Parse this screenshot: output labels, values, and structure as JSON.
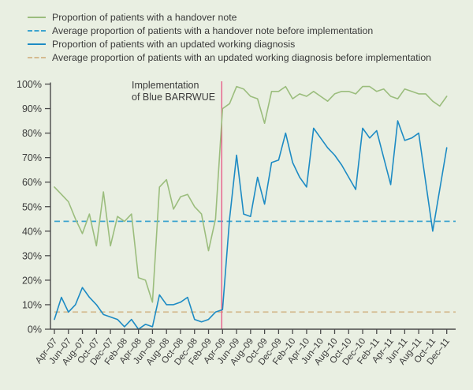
{
  "legend": {
    "items": [
      {
        "style": "solid",
        "color": "#9bbd7d"
      },
      {
        "style": "dashed",
        "color": "#3da4cf"
      },
      {
        "style": "solid",
        "color": "#1d8bc4"
      },
      {
        "style": "dashed",
        "color": "#d5bb90"
      }
    ]
  },
  "chart_data": {
    "type": "line",
    "title": "",
    "xlabel": "",
    "ylabel": "",
    "ylim": [
      0,
      100
    ],
    "grid": false,
    "legend_position": "top-left",
    "y_tick_labels": [
      "0%",
      "10%",
      "20%",
      "30%",
      "40%",
      "50%",
      "60%",
      "70%",
      "80%",
      "90%",
      "100%"
    ],
    "x": [
      "Apr-07",
      "May-07",
      "Jun-07",
      "Jul-07",
      "Aug-07",
      "Sep-07",
      "Oct-07",
      "Nov-07",
      "Dec-07",
      "Jan-08",
      "Feb-08",
      "Mar-08",
      "Apr-08",
      "May-08",
      "Jun-08",
      "Jul-08",
      "Aug-08",
      "Sep-08",
      "Oct-08",
      "Nov-08",
      "Dec-08",
      "Jan-09",
      "Feb-09",
      "Mar-09",
      "Apr-09",
      "May-09",
      "Jun-09",
      "Jul-09",
      "Aug-09",
      "Sep-09",
      "Oct-09",
      "Nov-09",
      "Dec-09",
      "Jan-10",
      "Feb-10",
      "Mar-10",
      "Apr-10",
      "May-10",
      "Jun-10",
      "Jul-10",
      "Aug-10",
      "Sep-10",
      "Oct-10",
      "Nov-10",
      "Dec-10",
      "Jan-11",
      "Feb-11",
      "Mar-11",
      "Apr-11",
      "May-11",
      "Jun-11",
      "Jul-11",
      "Aug-11",
      "Sep-11",
      "Oct-11",
      "Nov-11",
      "Dec-11"
    ],
    "x_tick_labels": [
      "Apr–07",
      "Jun–07",
      "Aug–07",
      "Oct–07",
      "Dec–07",
      "Feb–08",
      "Apr–08",
      "Jun–08",
      "Aug–08",
      "Oct–08",
      "Dec–08",
      "Feb–09",
      "Apr–09",
      "Jun–09",
      "Aug–09",
      "Oct–09",
      "Dec–09",
      "Feb–10",
      "Apr–10",
      "Jun–10",
      "Aug–10",
      "Oct–10",
      "Dec–10",
      "Feb–11",
      "Apr–11",
      "Jun–11",
      "Aug–11",
      "Oct–11",
      "Dec–11"
    ],
    "series": [
      {
        "name": "Proportion of patients with a handover note",
        "kind": "line",
        "color": "#9bbd7d",
        "values": [
          58,
          55,
          52,
          45,
          39,
          47,
          34,
          56,
          34,
          46,
          44,
          47,
          21,
          20,
          11,
          58,
          61,
          49,
          54,
          55,
          50,
          47,
          32,
          45,
          90,
          92,
          99,
          98,
          95,
          94,
          84,
          97,
          97,
          99,
          94,
          96,
          95,
          97,
          95,
          93,
          96,
          97,
          97,
          96,
          99,
          99,
          97,
          98,
          95,
          94,
          98,
          97,
          96,
          96,
          93,
          91,
          95
        ]
      },
      {
        "name": "Average proportion of patients with a handover note before implementation",
        "kind": "hline-dashed",
        "color": "#3da4cf",
        "value": 44
      },
      {
        "name": "Proportion of patients with an updated working diagnosis",
        "kind": "line",
        "color": "#1d8bc4",
        "values": [
          4,
          13,
          7,
          10,
          17,
          13,
          10,
          6,
          5,
          4,
          1,
          4,
          0,
          2,
          1,
          14,
          10,
          10,
          11,
          13,
          4,
          3,
          4,
          7,
          8,
          45,
          71,
          47,
          46,
          62,
          51,
          68,
          69,
          80,
          68,
          62,
          58,
          82,
          78,
          74,
          71,
          67,
          62,
          57,
          82,
          78,
          81,
          70,
          59,
          85,
          77,
          78,
          80,
          60,
          40,
          57,
          74
        ]
      },
      {
        "name": "Average proportion of patients with an updated working diagnosis before implementation",
        "kind": "hline-dashed",
        "color": "#d5bb90",
        "value": 7
      }
    ],
    "event_marker": {
      "x": "Apr-09",
      "color": "#e75d8a",
      "label_line1": "Implementation",
      "label_line2": "of Blue BARRWUE"
    }
  }
}
